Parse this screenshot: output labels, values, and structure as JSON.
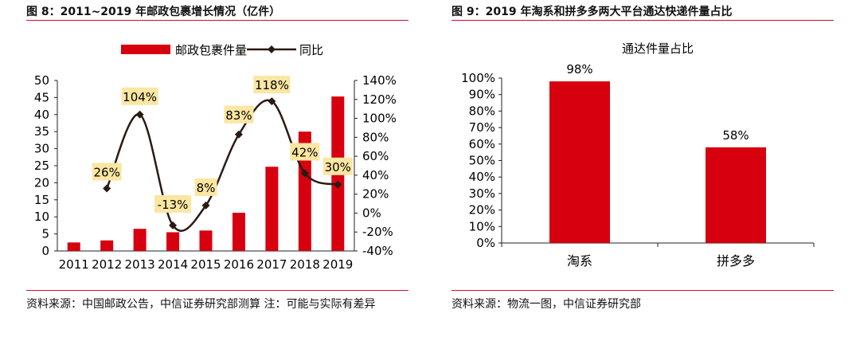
{
  "left_figure": {
    "caption": "图 8：2011~2019 年邮政包裹增长情况（亿件）",
    "source": "资料来源：中国邮政公告，中信证券研究部测算 注：可能与实际有差异"
  },
  "right_figure": {
    "caption": "图 9：2019 年淘系和拼多多两大平台通达快递件量占比",
    "source": "资料来源：物流一图，中信证券研究部"
  },
  "chart_data": [
    {
      "type": "bar",
      "title": "",
      "categories": [
        "2011",
        "2012",
        "2013",
        "2014",
        "2015",
        "2016",
        "2017",
        "2018",
        "2019"
      ],
      "series": [
        {
          "name": "邮政包裹件量",
          "type": "bar",
          "axis": "left",
          "color": "#d7000f",
          "values": [
            2.5,
            3.1,
            6.5,
            5.5,
            6.0,
            11.2,
            24.7,
            35.0,
            45.3
          ]
        },
        {
          "name": "同比",
          "type": "line",
          "axis": "right",
          "color": "#2b1a12",
          "values": [
            null,
            26,
            104,
            -13,
            8,
            83,
            118,
            42,
            30
          ],
          "labels": [
            "",
            "26%",
            "104%",
            "-13%",
            "8%",
            "83%",
            "118%",
            "42%",
            "30%"
          ]
        }
      ],
      "y_left": {
        "min": 0,
        "max": 50,
        "ticks": [
          "0",
          "5",
          "10",
          "15",
          "20",
          "25",
          "30",
          "35",
          "40",
          "45",
          "50"
        ]
      },
      "y_right": {
        "min": -40,
        "max": 140,
        "ticks": [
          "-40%",
          "-20%",
          "0%",
          "20%",
          "40%",
          "60%",
          "80%",
          "100%",
          "120%",
          "140%"
        ]
      },
      "legend_position": "top",
      "grid": false
    },
    {
      "type": "bar",
      "title": "通达件量占比",
      "categories": [
        "淘系",
        "拼多多"
      ],
      "series": [
        {
          "color": "#d7000f",
          "values": [
            98,
            58
          ],
          "labels": [
            "98%",
            "58%"
          ]
        }
      ],
      "y": {
        "min": 0,
        "max": 100,
        "ticks": [
          "0%",
          "10%",
          "20%",
          "30%",
          "40%",
          "50%",
          "60%",
          "70%",
          "80%",
          "90%",
          "100%"
        ]
      },
      "grid": false
    }
  ]
}
